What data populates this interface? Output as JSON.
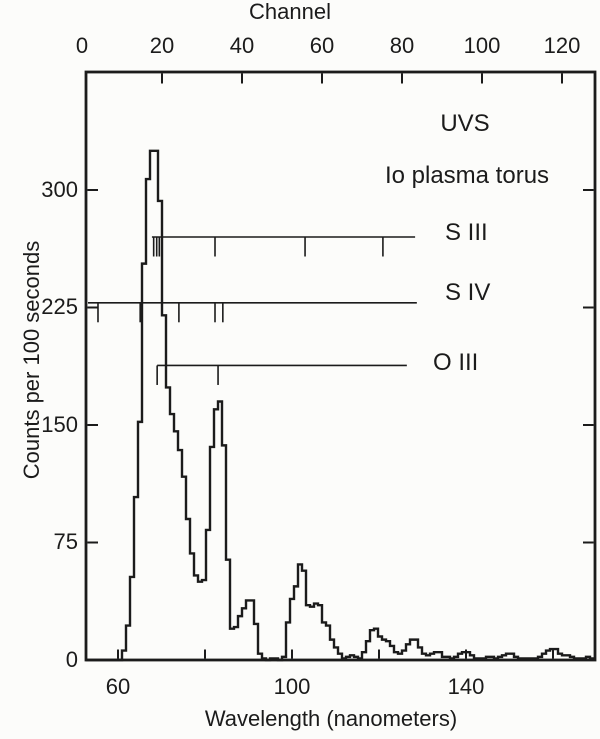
{
  "axes": {
    "top": {
      "title": "Channel",
      "tick_values": [
        0,
        20,
        40,
        60,
        80,
        100,
        120
      ]
    },
    "bottom": {
      "title": "Wavelength (nanometers)",
      "labeled_ticks": [
        60,
        100,
        140
      ],
      "unlabeled_ticks": [
        80,
        120,
        160
      ]
    },
    "left": {
      "title": "Counts per 100 seconds",
      "tick_values": [
        0,
        75,
        150,
        225,
        300
      ]
    },
    "right": {
      "tick_values": [
        75,
        150,
        225,
        300
      ]
    }
  },
  "annotations": {
    "instrument": "UVS",
    "target": "Io plasma torus",
    "ion_lines": [
      {
        "label": "S III",
        "counts_level": 270,
        "wavelength_start_nm": 67.8,
        "wavelength_end_nm": 128.3,
        "line_marks_nm": [
          68.2,
          68.9,
          69.5,
          82.3,
          103.0,
          120.9
        ]
      },
      {
        "label": "S IV",
        "counts_level": 228,
        "wavelength_start_nm": 53.1,
        "wavelength_end_nm": 128.7,
        "line_marks_nm": [
          55.4,
          65.1,
          74.0,
          82.3,
          84.1
        ]
      },
      {
        "label": "O III",
        "counts_level": 188,
        "wavelength_start_nm": 69.0,
        "wavelength_end_nm": 126.4,
        "line_marks_nm": [
          69.0,
          83.0
        ]
      }
    ]
  },
  "chart_data": {
    "type": "line",
    "style": "step-histogram",
    "title": "",
    "xlabel": "Wavelength (nanometers)",
    "x2label": "Channel",
    "ylabel": "Counts per 100 seconds",
    "grid": false,
    "ylim": [
      0,
      375
    ],
    "x_wavelength_range_nm": [
      52.6,
      169.7
    ],
    "x2_channel_range": [
      0,
      128
    ],
    "nm_per_channel": 0.92,
    "wavelength_of_channel_0_nm": 51.7,
    "counts_per_channel": [
      0,
      0,
      0,
      0,
      0,
      0,
      0,
      0,
      0,
      0,
      6,
      22,
      53,
      104,
      152,
      253,
      307,
      325,
      325,
      293,
      220,
      174,
      157,
      146,
      134,
      117,
      90,
      68,
      54,
      50,
      51,
      83,
      136,
      160,
      165,
      137,
      64,
      20,
      21,
      28,
      33,
      38,
      38,
      23,
      4,
      1,
      0,
      1,
      1,
      0,
      2,
      24,
      39,
      47,
      61,
      57,
      35,
      34,
      36,
      35,
      24,
      22,
      13,
      8,
      4,
      1,
      2,
      3,
      2,
      1,
      5,
      12,
      19,
      20,
      15,
      13,
      12,
      9,
      5,
      4,
      6,
      10,
      13,
      13,
      8,
      4,
      3,
      4,
      5,
      5,
      2,
      2,
      1,
      2,
      4,
      5,
      5,
      3,
      1,
      1,
      1,
      2,
      2,
      1,
      2,
      3,
      4,
      4,
      2,
      1,
      1,
      1,
      1,
      1,
      2,
      4,
      6,
      7,
      7,
      4,
      3,
      3,
      2,
      1,
      1,
      1,
      2,
      1
    ]
  },
  "colors": {
    "ink": "#1b1b1b",
    "paper": "#fcfcfa"
  }
}
